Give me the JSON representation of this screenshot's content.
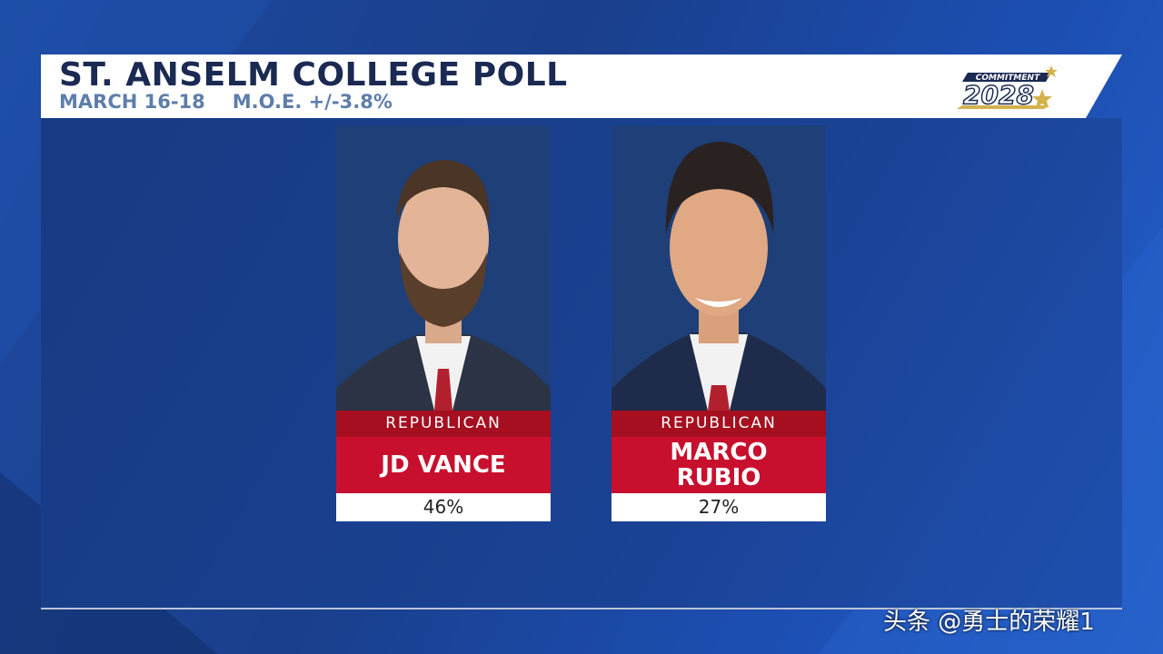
{
  "header": {
    "title": "ST. ANSELM COLLEGE POLL",
    "dates": "MARCH 16-18",
    "moe": "M.O.E. +/-3.8%"
  },
  "logo": {
    "top": "COMMITMENT",
    "year": "2028"
  },
  "candidates": [
    {
      "party": "REPUBLICAN",
      "name": [
        "JD VANCE"
      ],
      "result": "46%"
    },
    {
      "party": "REPUBLICAN",
      "name": [
        "MARCO",
        "RUBIO"
      ],
      "result": "27%"
    }
  ],
  "watermark": "头条 @勇士的荣耀1"
}
